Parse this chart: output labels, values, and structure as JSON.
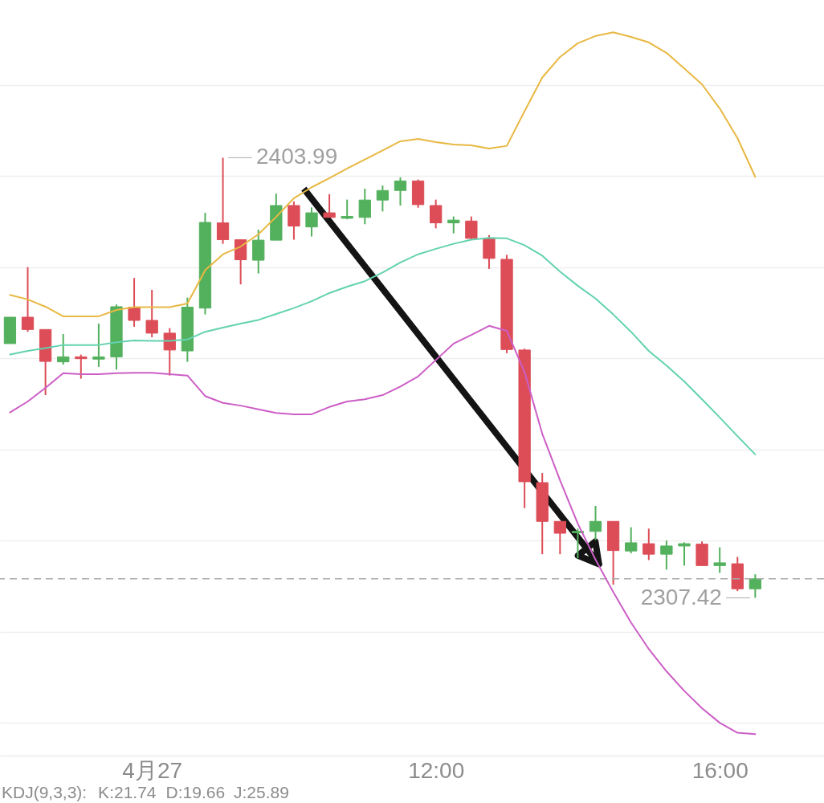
{
  "chart_data": {
    "type": "candlestick",
    "categories": [
      null,
      null,
      null,
      null,
      null,
      null,
      null,
      null,
      "4月27",
      null,
      null,
      null,
      null,
      null,
      null,
      null,
      null,
      null,
      null,
      null,
      null,
      null,
      null,
      null,
      "12:00",
      null,
      null,
      null,
      null,
      null,
      null,
      null,
      null,
      null,
      null,
      null,
      null,
      null,
      null,
      null,
      "16:00",
      null,
      null
    ],
    "ohlc": [
      [
        2363.2,
        2369.0,
        2363.2,
        2369.0
      ],
      [
        2369.0,
        2380.0,
        2365.8,
        2366.3
      ],
      [
        2366.3,
        2366.3,
        2351.9,
        2359.3
      ],
      [
        2359.2,
        2365.3,
        2358.6,
        2360.3
      ],
      [
        2360.3,
        2360.8,
        2355.5,
        2359.9
      ],
      [
        2359.8,
        2367.6,
        2358.1,
        2360.3
      ],
      [
        2360.3,
        2371.8,
        2357.5,
        2371.3
      ],
      [
        2371.2,
        2377.6,
        2366.9,
        2368.3
      ],
      [
        2368.3,
        2375.0,
        2364.6,
        2365.5
      ],
      [
        2365.5,
        2366.6,
        2356.2,
        2361.8
      ],
      [
        2361.6,
        2373.3,
        2359.2,
        2371.2
      ],
      [
        2371.0,
        2391.9,
        2369.6,
        2389.8
      ],
      [
        2389.7,
        2403.99,
        2385.1,
        2386.0
      ],
      [
        2386.0,
        2386.0,
        2376.2,
        2381.6
      ],
      [
        2381.5,
        2388.2,
        2378.6,
        2385.9
      ],
      [
        2385.9,
        2396.1,
        2385.9,
        2393.5
      ],
      [
        2393.5,
        2394.4,
        2386.0,
        2389.0
      ],
      [
        2388.8,
        2393.1,
        2386.7,
        2391.9
      ],
      [
        2391.9,
        2396.0,
        2390.9,
        2390.9
      ],
      [
        2390.7,
        2394.8,
        2390.5,
        2391.1
      ],
      [
        2390.9,
        2397.2,
        2389.4,
        2394.7
      ],
      [
        2394.7,
        2397.9,
        2392.2,
        2396.8
      ],
      [
        2396.8,
        2399.7,
        2393.5,
        2398.9
      ],
      [
        2398.9,
        2399.2,
        2393.0,
        2393.7
      ],
      [
        2393.5,
        2394.8,
        2388.5,
        2389.7
      ],
      [
        2389.7,
        2391.1,
        2387.4,
        2390.3
      ],
      [
        2390.1,
        2391.1,
        2386.0,
        2386.3
      ],
      [
        2386.3,
        2387.0,
        2379.6,
        2381.9
      ],
      [
        2381.7,
        2382.7,
        2361.1,
        2361.9
      ],
      [
        2361.8,
        2362.1,
        2327.1,
        2332.9
      ],
      [
        2332.7,
        2334.8,
        2317.0,
        2324.2
      ],
      [
        2324.2,
        2324.2,
        2317.0,
        2321.6
      ],
      [
        2321.7,
        2322.6,
        2316.1,
        2322.0
      ],
      [
        2322.0,
        2327.6,
        2320.1,
        2324.2
      ],
      [
        2324.2,
        2324.2,
        2310.3,
        2317.8
      ],
      [
        2317.7,
        2322.9,
        2317.2,
        2319.5
      ],
      [
        2319.3,
        2322.6,
        2315.7,
        2317.0
      ],
      [
        2317.0,
        2320.0,
        2313.6,
        2318.8
      ],
      [
        2318.8,
        2319.6,
        2314.5,
        2319.3
      ],
      [
        2319.2,
        2319.8,
        2314.5,
        2314.5
      ],
      [
        2314.5,
        2318.5,
        2312.9,
        2315.1
      ],
      [
        2314.9,
        2316.4,
        2308.9,
        2309.4
      ],
      [
        2309.4,
        2312.6,
        2307.42,
        2311.6
      ]
    ],
    "colors": [
      "#53b15e",
      "#dc4d57",
      "#dc4d57",
      "#53b15e",
      "#dc4d57",
      "#53b15e",
      "#53b15e",
      "#dc4d57",
      "#dc4d57",
      "#dc4d57",
      "#53b15e",
      "#53b15e",
      "#dc4d57",
      "#dc4d57",
      "#53b15e",
      "#53b15e",
      "#dc4d57",
      "#53b15e",
      "#dc4d57",
      "#53b15e",
      "#53b15e",
      "#53b15e",
      "#53b15e",
      "#dc4d57",
      "#dc4d57",
      "#53b15e",
      "#dc4d57",
      "#dc4d57",
      "#dc4d57",
      "#dc4d57",
      "#dc4d57",
      "#dc4d57",
      "#53b15e",
      "#53b15e",
      "#dc4d57",
      "#53b15e",
      "#dc4d57",
      "#53b15e",
      "#53b15e",
      "#dc4d57",
      "#53b15e",
      "#dc4d57",
      "#53b15e"
    ],
    "series": [
      {
        "type": "line",
        "color": "#e8b842",
        "values": [
          2373.9,
          2372.9,
          2371.3,
          2369.2,
          2369.2,
          2369.2,
          2370.6,
          2371.2,
          2371.2,
          2371.2,
          2372.0,
          2379.3,
          2382.8,
          2384.5,
          2387.2,
          2391.0,
          2395.1,
          2397.5,
          2399.5,
          2401.6,
          2403.6,
          2405.6,
          2407.6,
          2408.1,
          2407.4,
          2406.9,
          2406.7,
          2406.0,
          2406.6,
          2414.2,
          2421.6,
          2426.1,
          2429.1,
          2430.7,
          2431.5,
          2430.5,
          2429.3,
          2427.0,
          2423.6,
          2420.1,
          2414.8,
          2408.3,
          2399.8
        ]
      },
      {
        "type": "line",
        "color": "#63d2b0",
        "values": [
          2360.8,
          2361.6,
          2362.2,
          2362.9,
          2362.9,
          2362.9,
          2363.5,
          2363.9,
          2363.8,
          2363.8,
          2364.1,
          2365.8,
          2366.7,
          2367.6,
          2368.4,
          2369.7,
          2371.0,
          2372.5,
          2374.3,
          2375.7,
          2376.9,
          2378.8,
          2381.0,
          2382.8,
          2384.0,
          2385.1,
          2386.0,
          2386.4,
          2386.3,
          2384.8,
          2382.5,
          2379.0,
          2375.9,
          2373.1,
          2369.6,
          2365.8,
          2361.6,
          2358.4,
          2354.9,
          2351.0,
          2347.0,
          2342.9,
          2338.9
        ]
      },
      {
        "type": "line",
        "color": "#cc5ec6",
        "values": [
          2348.1,
          2350.5,
          2353.5,
          2356.7,
          2356.5,
          2356.5,
          2356.7,
          2356.8,
          2356.8,
          2356.5,
          2356.2,
          2351.7,
          2350.2,
          2349.6,
          2348.8,
          2348.0,
          2347.7,
          2347.7,
          2349.3,
          2350.5,
          2351.0,
          2351.9,
          2353.8,
          2356.0,
          2359.6,
          2363.2,
          2365.1,
          2367.1,
          2366.0,
          2357.0,
          2343.4,
          2333.2,
          2323.7,
          2315.8,
          2308.7,
          2302.0,
          2296.2,
          2291.3,
          2287.0,
          2283.2,
          2280.0,
          2277.8,
          2277.5
        ]
      }
    ],
    "ylim": [
      2272.8,
      2438.6
    ],
    "yticks": [
      {
        "value": 2280,
        "label": null
      },
      {
        "value": 2300,
        "label": null
      },
      {
        "value": 2320,
        "label": null
      },
      {
        "value": 2340,
        "label": null
      },
      {
        "value": 2360,
        "label": null
      },
      {
        "value": 2380,
        "label": null
      },
      {
        "value": 2400,
        "label": null
      },
      {
        "value": 2420,
        "label": null
      }
    ],
    "grid": "y",
    "tick_labels": "x",
    "ref_lines": [
      {
        "axis": "y",
        "value": 2311.6,
        "color": "#aaaaaa",
        "line_style": "dashed"
      }
    ],
    "annotations": [
      "2403.99",
      "2307.42",
      "KDJ(9,3,3):",
      "K:21.74",
      "D:19.66",
      "J:25.89"
    ]
  }
}
